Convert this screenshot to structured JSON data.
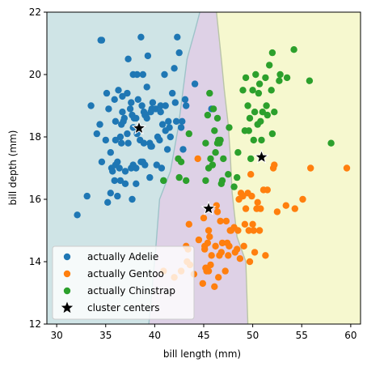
{
  "chart_data": {
    "type": "scatter",
    "title": "",
    "xlabel": "bill length (mm)",
    "ylabel": "bill depth (mm)",
    "xlim": [
      29,
      61
    ],
    "ylim": [
      12,
      22
    ],
    "xticks": [
      30,
      35,
      40,
      45,
      50,
      55,
      60
    ],
    "yticks": [
      12,
      14,
      16,
      18,
      20,
      22
    ],
    "legend_position": "lower-left",
    "regions": [
      {
        "label": "Adelie region",
        "color": "#cfe4e6"
      },
      {
        "label": "Gentoo region",
        "color": "#ded1e6"
      },
      {
        "label": "Chinstrap region",
        "color": "#f6f8cf"
      }
    ],
    "boundary_1": [
      [
        39.4,
        12
      ],
      [
        40.1,
        14.4
      ],
      [
        40.5,
        16.0
      ],
      [
        41.6,
        16.9
      ],
      [
        42.4,
        18.3
      ],
      [
        43.3,
        20.5
      ],
      [
        44.1,
        21.4
      ],
      [
        44.6,
        22
      ]
    ],
    "boundary_2": [
      [
        49.5,
        12
      ],
      [
        49.3,
        14.0
      ],
      [
        48.4,
        14.8
      ],
      [
        47.9,
        16.2
      ],
      [
        47.7,
        17.5
      ],
      [
        47.5,
        18.4
      ],
      [
        47.1,
        19.5
      ],
      [
        46.8,
        20.5
      ],
      [
        46.5,
        21.4
      ],
      [
        46.3,
        22
      ]
    ],
    "series": [
      {
        "name": "actually Adelie",
        "color": "#1f77b4",
        "marker": "circle",
        "points": [
          [
            34.5,
            21.1
          ],
          [
            32.1,
            15.5
          ],
          [
            33.1,
            16.1
          ],
          [
            33.5,
            19.0
          ],
          [
            34.1,
            18.1
          ],
          [
            34.4,
            18.4
          ],
          [
            34.6,
            17.2
          ],
          [
            34.6,
            21.1
          ],
          [
            35.0,
            17.9
          ],
          [
            35.1,
            19.4
          ],
          [
            35.2,
            15.9
          ],
          [
            35.3,
            18.9
          ],
          [
            35.5,
            16.2
          ],
          [
            35.5,
            17.5
          ],
          [
            35.6,
            17.0
          ],
          [
            35.7,
            16.9
          ],
          [
            35.9,
            19.2
          ],
          [
            35.9,
            16.6
          ],
          [
            36.0,
            17.1
          ],
          [
            36.0,
            18.5
          ],
          [
            36.0,
            17.9
          ],
          [
            36.2,
            16.1
          ],
          [
            36.2,
            17.2
          ],
          [
            36.3,
            19.5
          ],
          [
            36.4,
            17.0
          ],
          [
            36.5,
            18.0
          ],
          [
            36.5,
            16.6
          ],
          [
            36.6,
            17.8
          ],
          [
            36.6,
            18.4
          ],
          [
            36.7,
            19.3
          ],
          [
            36.7,
            18.8
          ],
          [
            36.8,
            18.5
          ],
          [
            36.9,
            18.6
          ],
          [
            37.0,
            16.9
          ],
          [
            37.0,
            16.5
          ],
          [
            37.2,
            18.1
          ],
          [
            37.2,
            19.4
          ],
          [
            37.3,
            17.8
          ],
          [
            37.3,
            20.5
          ],
          [
            37.5,
            18.9
          ],
          [
            37.6,
            19.1
          ],
          [
            37.6,
            17.0
          ],
          [
            37.7,
            18.7
          ],
          [
            37.7,
            16.0
          ],
          [
            37.8,
            18.3
          ],
          [
            37.8,
            17.1
          ],
          [
            37.8,
            20.0
          ],
          [
            37.9,
            18.6
          ],
          [
            38.1,
            18.6
          ],
          [
            38.1,
            17.0
          ],
          [
            38.1,
            16.5
          ],
          [
            38.2,
            18.1
          ],
          [
            38.2,
            20.0
          ],
          [
            38.3,
            19.2
          ],
          [
            38.5,
            17.9
          ],
          [
            38.6,
            21.2
          ],
          [
            38.6,
            17.2
          ],
          [
            38.7,
            19.0
          ],
          [
            38.8,
            17.2
          ],
          [
            38.8,
            20.0
          ],
          [
            38.9,
            18.8
          ],
          [
            38.9,
            17.8
          ],
          [
            39.0,
            17.1
          ],
          [
            39.0,
            18.7
          ],
          [
            39.1,
            18.7
          ],
          [
            39.2,
            19.6
          ],
          [
            39.2,
            18.6
          ],
          [
            39.3,
            20.6
          ],
          [
            39.5,
            16.7
          ],
          [
            39.5,
            17.8
          ],
          [
            39.6,
            17.7
          ],
          [
            39.6,
            18.8
          ],
          [
            39.7,
            17.7
          ],
          [
            39.7,
            18.9
          ],
          [
            39.8,
            19.1
          ],
          [
            40.1,
            18.9
          ],
          [
            40.2,
            17.1
          ],
          [
            40.3,
            18.0
          ],
          [
            40.5,
            17.9
          ],
          [
            40.6,
            18.8
          ],
          [
            40.6,
            19.0
          ],
          [
            40.7,
            17.0
          ],
          [
            40.8,
            18.4
          ],
          [
            40.9,
            16.6
          ],
          [
            41.0,
            20.0
          ],
          [
            41.1,
            18.2
          ],
          [
            41.1,
            19.0
          ],
          [
            41.3,
            17.6
          ],
          [
            41.4,
            18.5
          ],
          [
            41.5,
            18.3
          ],
          [
            41.6,
            18.0
          ],
          [
            41.8,
            19.4
          ],
          [
            42.0,
            20.2
          ],
          [
            42.1,
            19.1
          ],
          [
            42.2,
            18.5
          ],
          [
            42.3,
            21.2
          ],
          [
            42.5,
            20.7
          ],
          [
            42.7,
            18.3
          ],
          [
            42.8,
            18.5
          ],
          [
            42.9,
            17.6
          ],
          [
            43.1,
            19.2
          ],
          [
            43.2,
            19.0
          ],
          [
            44.1,
            19.7
          ],
          [
            45.8,
            18.9
          ]
        ]
      },
      {
        "name": "actually Gentoo",
        "color": "#ff7f0e",
        "marker": "circle",
        "points": [
          [
            40.9,
            13.7
          ],
          [
            42.0,
            13.5
          ],
          [
            42.7,
            13.7
          ],
          [
            43.2,
            14.5
          ],
          [
            43.3,
            14.0
          ],
          [
            43.4,
            14.4
          ],
          [
            43.5,
            15.2
          ],
          [
            43.6,
            13.9
          ],
          [
            44.0,
            13.6
          ],
          [
            44.4,
            17.3
          ],
          [
            44.5,
            14.7
          ],
          [
            44.9,
            13.3
          ],
          [
            45.0,
            15.4
          ],
          [
            45.1,
            14.5
          ],
          [
            45.2,
            13.8
          ],
          [
            45.3,
            13.7
          ],
          [
            45.4,
            14.6
          ],
          [
            45.5,
            13.7
          ],
          [
            45.5,
            15.0
          ],
          [
            45.7,
            13.9
          ],
          [
            45.8,
            14.2
          ],
          [
            46.1,
            13.2
          ],
          [
            46.2,
            14.5
          ],
          [
            46.4,
            15.6
          ],
          [
            46.5,
            13.5
          ],
          [
            46.6,
            14.2
          ],
          [
            46.8,
            14.3
          ],
          [
            46.9,
            14.6
          ],
          [
            47.2,
            13.7
          ],
          [
            47.3,
            15.3
          ],
          [
            47.5,
            14.2
          ],
          [
            47.6,
            14.5
          ],
          [
            47.7,
            15.0
          ],
          [
            48.1,
            15.1
          ],
          [
            48.2,
            14.3
          ],
          [
            48.4,
            14.4
          ],
          [
            48.5,
            15.0
          ],
          [
            48.6,
            16.0
          ],
          [
            48.7,
            14.1
          ],
          [
            49.0,
            16.1
          ],
          [
            49.1,
            14.5
          ],
          [
            49.2,
            15.2
          ],
          [
            49.3,
            15.7
          ],
          [
            49.5,
            16.2
          ],
          [
            49.6,
            15.0
          ],
          [
            49.8,
            16.8
          ],
          [
            49.9,
            16.1
          ],
          [
            50.0,
            15.2
          ],
          [
            50.1,
            15.0
          ],
          [
            50.2,
            14.3
          ],
          [
            50.4,
            15.7
          ],
          [
            50.5,
            15.9
          ],
          [
            50.8,
            15.7
          ],
          [
            51.1,
            16.3
          ],
          [
            51.3,
            14.2
          ],
          [
            51.5,
            16.3
          ],
          [
            52.1,
            17.0
          ],
          [
            52.2,
            17.1
          ],
          [
            52.5,
            15.6
          ],
          [
            53.4,
            15.8
          ],
          [
            54.3,
            15.7
          ],
          [
            55.1,
            16.0
          ],
          [
            55.9,
            17.0
          ],
          [
            59.6,
            17.0
          ],
          [
            47.4,
            14.6
          ],
          [
            46.3,
            15.8
          ],
          [
            45.1,
            14.4
          ],
          [
            49.7,
            14.0
          ],
          [
            48.8,
            16.2
          ],
          [
            47.8,
            15.0
          ],
          [
            45.6,
            14.8
          ],
          [
            50.7,
            15.0
          ],
          [
            46.7,
            15.3
          ]
        ]
      },
      {
        "name": "actually Chinstrap",
        "color": "#2ca02c",
        "marker": "circle",
        "points": [
          [
            40.9,
            16.6
          ],
          [
            42.4,
            17.3
          ],
          [
            42.5,
            16.7
          ],
          [
            42.7,
            17.2
          ],
          [
            43.2,
            16.6
          ],
          [
            43.5,
            18.1
          ],
          [
            45.2,
            16.6
          ],
          [
            45.2,
            17.8
          ],
          [
            45.4,
            18.7
          ],
          [
            45.5,
            17.0
          ],
          [
            45.6,
            19.4
          ],
          [
            45.7,
            17.3
          ],
          [
            45.9,
            17.1
          ],
          [
            46.0,
            18.9
          ],
          [
            46.1,
            18.2
          ],
          [
            46.2,
            17.5
          ],
          [
            46.4,
            18.6
          ],
          [
            46.4,
            17.8
          ],
          [
            46.5,
            17.9
          ],
          [
            46.6,
            17.8
          ],
          [
            46.7,
            17.9
          ],
          [
            46.8,
            16.5
          ],
          [
            46.9,
            16.6
          ],
          [
            47.0,
            17.3
          ],
          [
            47.5,
            16.8
          ],
          [
            47.6,
            18.3
          ],
          [
            48.1,
            16.4
          ],
          [
            48.5,
            17.5
          ],
          [
            49.0,
            19.5
          ],
          [
            49.2,
            18.2
          ],
          [
            49.3,
            19.9
          ],
          [
            49.5,
            19.0
          ],
          [
            49.6,
            18.2
          ],
          [
            49.7,
            18.6
          ],
          [
            49.8,
            17.3
          ],
          [
            50.0,
            19.5
          ],
          [
            50.1,
            17.9
          ],
          [
            50.2,
            18.8
          ],
          [
            50.3,
            20.0
          ],
          [
            50.5,
            18.4
          ],
          [
            50.6,
            19.4
          ],
          [
            50.7,
            19.7
          ],
          [
            50.8,
            18.5
          ],
          [
            50.9,
            17.9
          ],
          [
            51.0,
            18.8
          ],
          [
            51.3,
            19.9
          ],
          [
            51.4,
            19.0
          ],
          [
            51.5,
            18.7
          ],
          [
            51.7,
            20.3
          ],
          [
            51.9,
            19.5
          ],
          [
            52.0,
            20.7
          ],
          [
            52.0,
            18.1
          ],
          [
            52.2,
            18.8
          ],
          [
            52.7,
            19.8
          ],
          [
            52.8,
            20.0
          ],
          [
            53.5,
            19.9
          ],
          [
            54.2,
            20.8
          ],
          [
            55.8,
            19.8
          ],
          [
            58.0,
            17.8
          ],
          [
            48.4,
            16.7
          ]
        ]
      },
      {
        "name": "cluster centers",
        "color": "#000000",
        "marker": "star",
        "points": [
          [
            38.4,
            18.28
          ],
          [
            45.5,
            15.7
          ],
          [
            50.9,
            17.35
          ]
        ]
      }
    ]
  }
}
